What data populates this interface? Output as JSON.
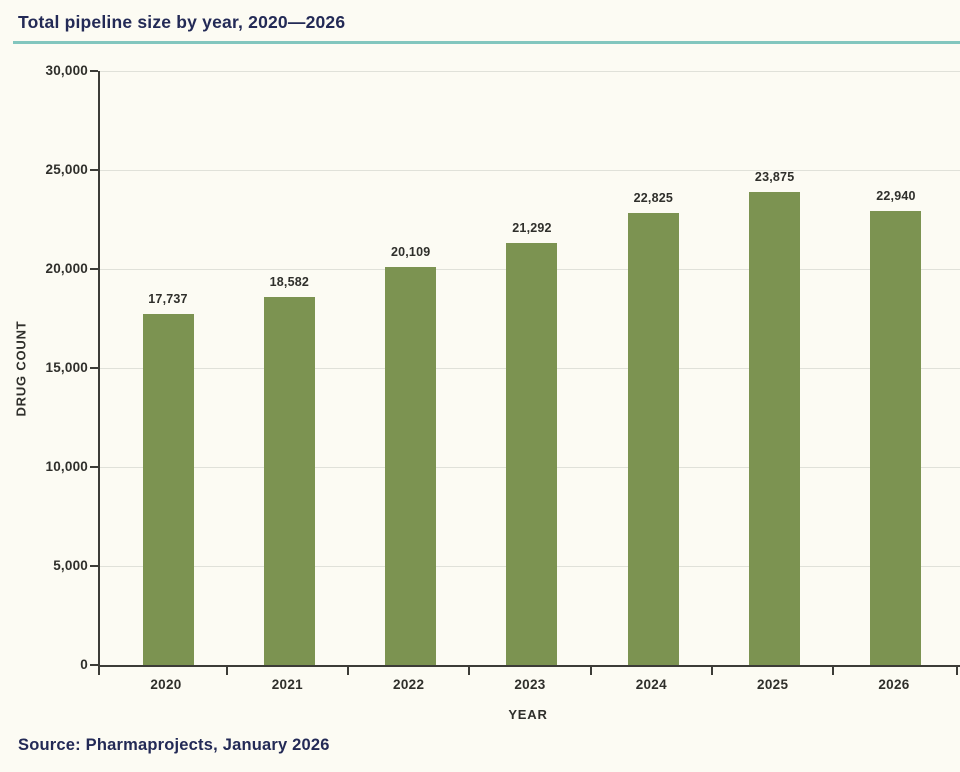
{
  "header": {
    "title": "Total pipeline size by year, 2020—2026"
  },
  "footer": {
    "source": "Source: Pharmaprojects, January 2026"
  },
  "chart_data": {
    "type": "bar",
    "title": "Total pipeline size by year, 2020—2026",
    "categories": [
      "2020",
      "2021",
      "2022",
      "2023",
      "2024",
      "2025",
      "2026"
    ],
    "values": [
      17737,
      18582,
      20109,
      21292,
      22825,
      23875,
      22940
    ],
    "value_labels": [
      "17,737",
      "18,582",
      "20,109",
      "21,292",
      "22,825",
      "23,875",
      "22,940"
    ],
    "xlabel": "YEAR",
    "ylabel": "DRUG COUNT",
    "ylim": [
      0,
      30000
    ],
    "ytick_step": 5000,
    "ytick_labels": [
      "0",
      "5,000",
      "10,000",
      "15,000",
      "20,000",
      "25,000",
      "30,000"
    ],
    "grid": true,
    "legend": null,
    "source": "Source: Pharmaprojects, January 2026"
  },
  "colors": {
    "background": "#FCFBF3",
    "title_text": "#232A56",
    "accent_line": "#82C6BE",
    "bar": "#7C9351",
    "grid": "#E0E1D9",
    "axis": "#3C3C37",
    "tick_text": "#2F2F2B"
  }
}
